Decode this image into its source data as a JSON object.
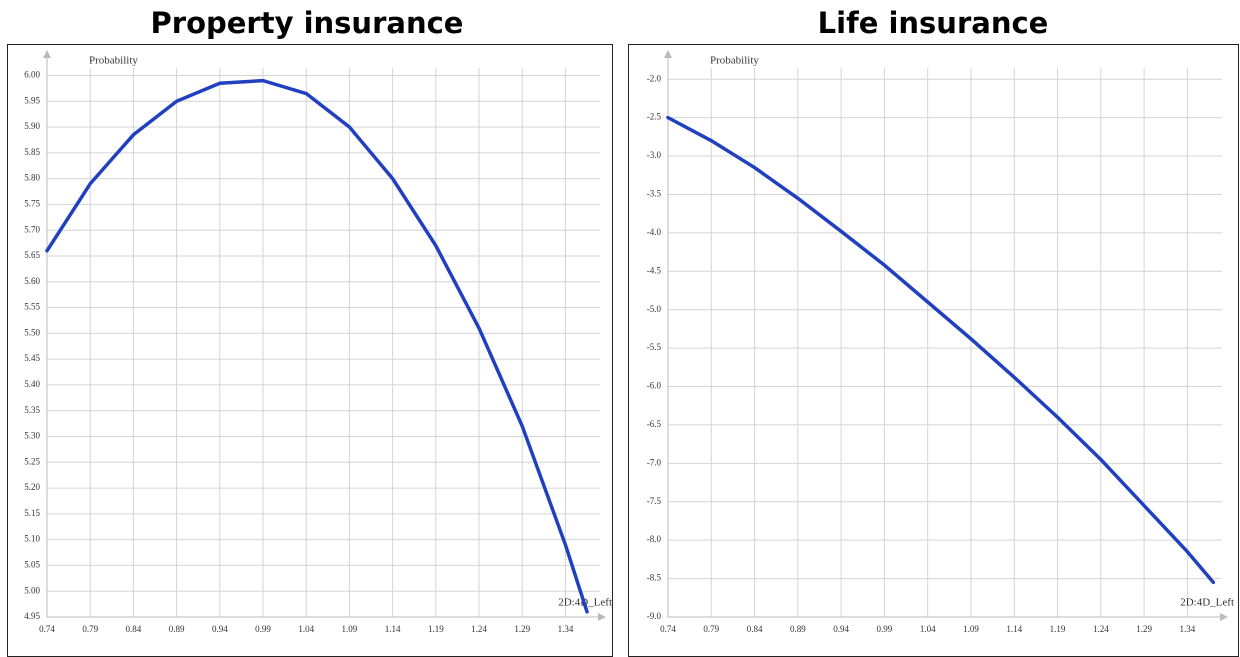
{
  "chart_data": [
    {
      "type": "line",
      "title": "Property insurance",
      "x_label": "2D:4D_Left",
      "y_label": "Probability",
      "x": [
        0.74,
        0.79,
        0.84,
        0.89,
        0.94,
        0.99,
        1.04,
        1.09,
        1.14,
        1.19,
        1.24,
        1.29,
        1.34,
        1.365
      ],
      "series": [
        {
          "color": "#2040c0",
          "values": [
            5.66,
            5.79,
            5.885,
            5.95,
            5.985,
            5.99,
            5.965,
            5.9,
            5.8,
            5.67,
            5.51,
            5.32,
            5.09,
            4.96
          ]
        }
      ],
      "xlim": [
        0.74,
        1.38
      ],
      "ylim": [
        4.95,
        6.03
      ],
      "xticks": [
        0.74,
        0.79,
        0.84,
        0.89,
        0.94,
        0.99,
        1.04,
        1.09,
        1.14,
        1.19,
        1.24,
        1.29,
        1.34
      ],
      "yticks": [
        4.95,
        {
          "value": 5,
          "label": "5.00"
        },
        5.05,
        {
          "value": 5.1,
          "label": "5.10"
        },
        5.15,
        {
          "value": 5.2,
          "label": "5.20"
        },
        5.25,
        {
          "value": 5.3,
          "label": "5.30"
        },
        5.35,
        {
          "value": 5.4,
          "label": "5.40"
        },
        5.45,
        {
          "value": 5.5,
          "label": "5.50"
        },
        5.55,
        {
          "value": 5.6,
          "label": "5.60"
        },
        5.65,
        {
          "value": 5.7,
          "label": "5.70"
        },
        5.75,
        {
          "value": 5.8,
          "label": "5.80"
        },
        5.85,
        {
          "value": 5.9,
          "label": "5.90"
        },
        5.95,
        {
          "value": 6,
          "label": "6.00"
        }
      ],
      "grid": true
    },
    {
      "type": "line",
      "title": "Life insurance",
      "x_label": "2D:4D_Left",
      "y_label": "Probability",
      "x": [
        0.74,
        0.79,
        0.84,
        0.89,
        0.94,
        0.99,
        1.04,
        1.09,
        1.14,
        1.19,
        1.24,
        1.29,
        1.34,
        1.37
      ],
      "series": [
        {
          "color": "#2040c0",
          "values": [
            -2.5,
            -2.8,
            -3.15,
            -3.55,
            -3.98,
            -4.42,
            -4.9,
            -5.38,
            -5.88,
            -6.4,
            -6.95,
            -7.55,
            -8.15,
            -8.55
          ]
        }
      ],
      "xlim": [
        0.74,
        1.38
      ],
      "ylim": [
        -9,
        -1.75
      ],
      "xticks": [
        0.74,
        0.79,
        0.84,
        0.89,
        0.94,
        0.99,
        1.04,
        1.09,
        1.14,
        1.19,
        1.24,
        1.29,
        1.34
      ],
      "yticks": [
        {
          "value": -9,
          "label": "-9.0"
        },
        -8.5,
        {
          "value": -8,
          "label": "-8.0"
        },
        -7.5,
        {
          "value": -7,
          "label": "-7.0"
        },
        -6.5,
        {
          "value": -6,
          "label": "-6.0"
        },
        -5.5,
        {
          "value": -5,
          "label": "-5.0"
        },
        -4.5,
        {
          "value": -4,
          "label": "-4.0"
        },
        -3.5,
        {
          "value": -3,
          "label": "-3.0"
        },
        -2.5,
        {
          "value": -2,
          "label": "-2.0"
        }
      ],
      "grid": true
    }
  ]
}
